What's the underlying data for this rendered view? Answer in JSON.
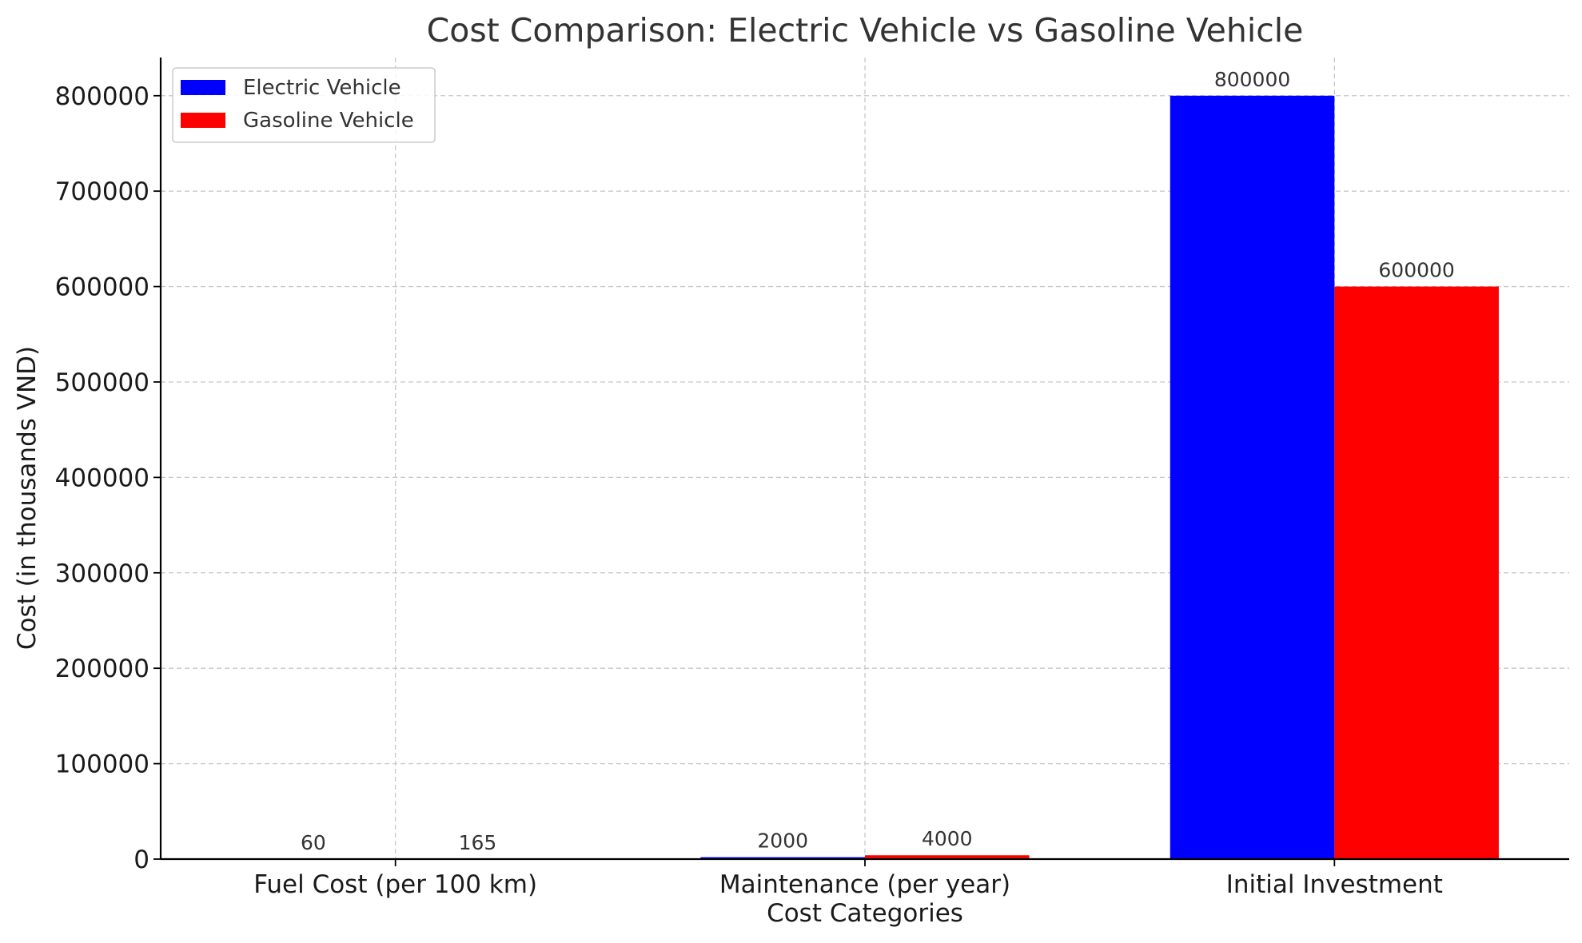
{
  "chart_data": {
    "type": "bar",
    "title": "Cost Comparison: Electric Vehicle vs Gasoline Vehicle",
    "xlabel": "Cost Categories",
    "ylabel": "Cost (in thousands VND)",
    "categories": [
      "Fuel Cost (per 100 km)",
      "Maintenance (per year)",
      "Initial Investment"
    ],
    "series": [
      {
        "name": "Electric Vehicle",
        "color": "#0000ff",
        "values": [
          60,
          2000,
          800000
        ]
      },
      {
        "name": "Gasoline Vehicle",
        "color": "#ff0000",
        "values": [
          165,
          4000,
          600000
        ]
      }
    ],
    "ylim": [
      0,
      840000
    ],
    "yticks": [
      0,
      100000,
      200000,
      300000,
      400000,
      500000,
      600000,
      700000,
      800000
    ],
    "grid": true,
    "legend_position": "top-left"
  }
}
